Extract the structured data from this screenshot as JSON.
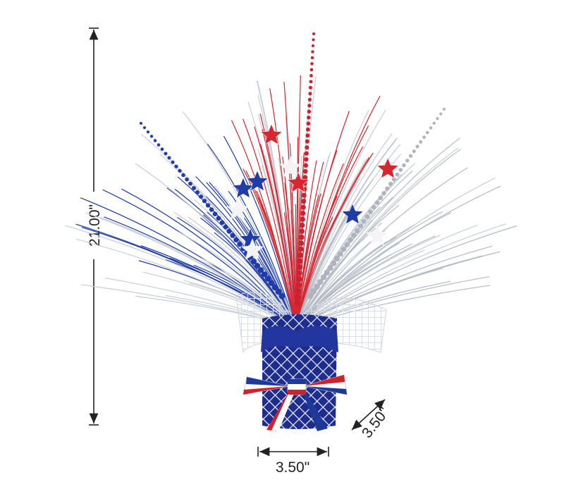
{
  "dimensions": {
    "height": "21.00\"",
    "width": "3.50\"",
    "depth": "3.50\""
  }
}
